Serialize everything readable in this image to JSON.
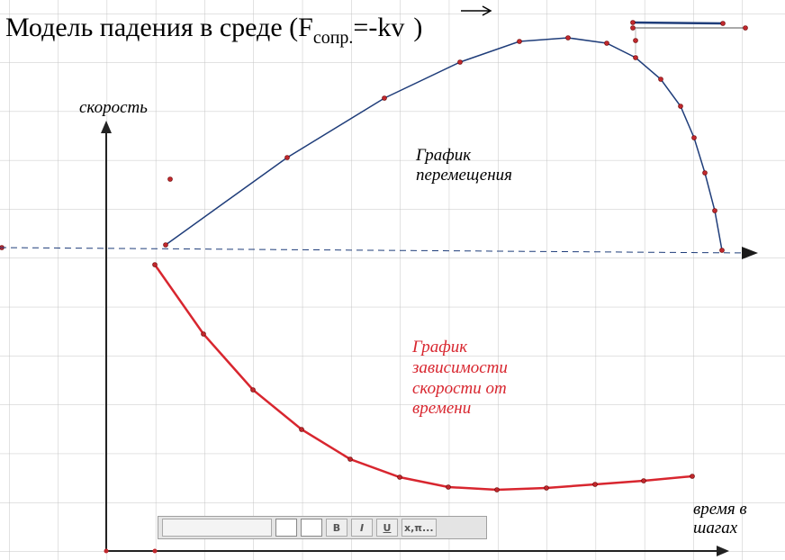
{
  "title": {
    "main": "Модель падения в среде (F",
    "subscript": "сопр.",
    "rest": "=-kv",
    "close": ")"
  },
  "labels": {
    "y_axis": "скорость",
    "x_axis": [
      "время в",
      "шагах"
    ],
    "displacement": [
      "График",
      "перемещения"
    ],
    "velocity": [
      "График",
      "зависимости",
      "скорости от",
      "времени"
    ]
  },
  "toolbar": {
    "buttons": [
      "B",
      "I",
      "U",
      "x,π..."
    ]
  }
}
